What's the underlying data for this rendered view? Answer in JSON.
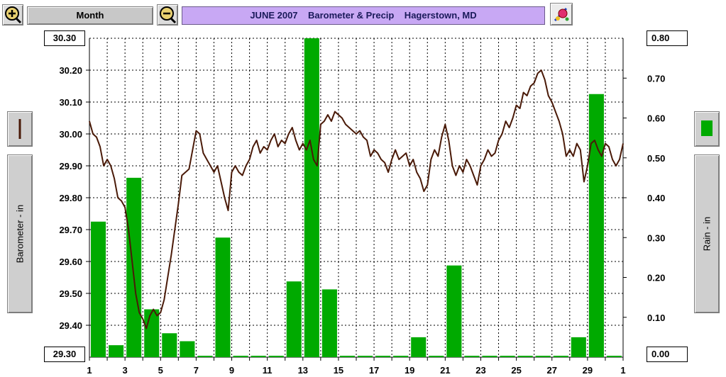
{
  "toolbar": {
    "zoom_in_icon": "magnifier-plus-icon",
    "period_label": "Month",
    "zoom_out_icon": "magnifier-minus-icon",
    "title": "JUNE 2007    Barometer & Precip    Hagerstown, MD",
    "tool_icon": "paint-tool-icon"
  },
  "left_panel": {
    "legend_icon": "barometer-line-swatch",
    "axis_label": "Barometer - in"
  },
  "right_panel": {
    "legend_icon": "rain-bar-swatch",
    "axis_label": "Rain - in"
  },
  "colors": {
    "barometer_line": "#4a1a08",
    "rain_bars": "#00aa00",
    "grid": "#000000",
    "title_bg": "#c8a8f4"
  },
  "chart_data": {
    "type": "bar",
    "title": "JUNE 2007    Barometer & Precip    Hagerstown, MD",
    "x_ticks": [
      "1",
      "3",
      "5",
      "7",
      "9",
      "11",
      "13",
      "15",
      "17",
      "19",
      "21",
      "23",
      "25",
      "27",
      "29",
      "1"
    ],
    "xlim": [
      1,
      31
    ],
    "grid": true,
    "left_axis": {
      "label": "Barometer - in",
      "ylim": [
        29.3,
        30.3
      ],
      "ticks": [
        "30.30",
        "30.20",
        "30.10",
        "30.00",
        "29.90",
        "29.80",
        "29.70",
        "29.60",
        "29.50",
        "29.40",
        "29.30"
      ]
    },
    "right_axis": {
      "label": "Rain - in",
      "ylim": [
        0,
        0.8
      ],
      "ticks": [
        "0.80",
        "0.70",
        "0.60",
        "0.50",
        "0.40",
        "0.30",
        "0.20",
        "0.10",
        "0.00"
      ]
    },
    "rain": {
      "days": [
        1,
        2,
        3,
        4,
        5,
        6,
        7,
        8,
        9,
        10,
        11,
        12,
        13,
        14,
        15,
        16,
        17,
        18,
        19,
        20,
        21,
        22,
        23,
        24,
        25,
        26,
        27,
        28,
        29,
        30
      ],
      "values": [
        0.34,
        0.03,
        0.45,
        0.12,
        0.06,
        0.04,
        0.0,
        0.3,
        0.0,
        0.0,
        0.0,
        0.19,
        0.8,
        0.17,
        0.0,
        0.0,
        0.0,
        0.0,
        0.05,
        0.0,
        0.23,
        0.0,
        0.0,
        0.0,
        0.0,
        0.0,
        0.0,
        0.05,
        0.66,
        0.0
      ]
    },
    "barometer": {
      "t": [
        1.0,
        1.2,
        1.4,
        1.6,
        1.8,
        2.0,
        2.2,
        2.4,
        2.6,
        2.8,
        3.0,
        3.2,
        3.4,
        3.6,
        3.8,
        4.0,
        4.2,
        4.4,
        4.6,
        4.8,
        5.0,
        5.2,
        5.4,
        5.6,
        5.8,
        6.0,
        6.2,
        6.4,
        6.6,
        6.8,
        7.0,
        7.2,
        7.4,
        7.6,
        7.8,
        8.0,
        8.2,
        8.4,
        8.6,
        8.8,
        9.0,
        9.2,
        9.4,
        9.6,
        9.8,
        10.0,
        10.2,
        10.4,
        10.6,
        10.8,
        11.0,
        11.2,
        11.4,
        11.6,
        11.8,
        12.0,
        12.2,
        12.4,
        12.6,
        12.8,
        13.0,
        13.2,
        13.4,
        13.6,
        13.8,
        14.0,
        14.2,
        14.4,
        14.6,
        14.8,
        15.0,
        15.2,
        15.4,
        15.6,
        15.8,
        16.0,
        16.2,
        16.4,
        16.6,
        16.8,
        17.0,
        17.2,
        17.4,
        17.6,
        17.8,
        18.0,
        18.2,
        18.4,
        18.6,
        18.8,
        19.0,
        19.2,
        19.4,
        19.6,
        19.8,
        20.0,
        20.2,
        20.4,
        20.6,
        20.8,
        21.0,
        21.2,
        21.4,
        21.6,
        21.8,
        22.0,
        22.2,
        22.4,
        22.6,
        22.8,
        23.0,
        23.2,
        23.4,
        23.6,
        23.8,
        24.0,
        24.2,
        24.4,
        24.6,
        24.8,
        25.0,
        25.2,
        25.4,
        25.6,
        25.8,
        26.0,
        26.2,
        26.4,
        26.6,
        26.8,
        27.0,
        27.2,
        27.4,
        27.6,
        27.8,
        28.0,
        28.2,
        28.4,
        28.6,
        28.8,
        29.0,
        29.2,
        29.4,
        29.6,
        29.8,
        30.0,
        30.2,
        30.4,
        30.6,
        30.8,
        31.0
      ],
      "values": [
        30.04,
        30.0,
        29.99,
        29.96,
        29.9,
        29.92,
        29.9,
        29.86,
        29.8,
        29.79,
        29.77,
        29.7,
        29.6,
        29.5,
        29.44,
        29.42,
        29.39,
        29.43,
        29.45,
        29.43,
        29.44,
        29.48,
        29.55,
        29.62,
        29.7,
        29.78,
        29.87,
        29.88,
        29.89,
        29.95,
        30.01,
        30.0,
        29.94,
        29.92,
        29.9,
        29.88,
        29.9,
        29.85,
        29.8,
        29.76,
        29.88,
        29.9,
        29.88,
        29.87,
        29.9,
        29.92,
        29.96,
        29.98,
        29.94,
        29.96,
        29.95,
        29.98,
        30.0,
        29.96,
        29.98,
        29.97,
        30.0,
        30.02,
        29.98,
        29.95,
        29.97,
        29.95,
        29.98,
        29.92,
        29.9,
        30.03,
        30.04,
        30.06,
        30.04,
        30.07,
        30.06,
        30.05,
        30.03,
        30.02,
        30.01,
        30.0,
        30.01,
        29.99,
        29.98,
        29.93,
        29.95,
        29.94,
        29.92,
        29.91,
        29.88,
        29.92,
        29.95,
        29.92,
        29.93,
        29.94,
        29.9,
        29.92,
        29.88,
        29.86,
        29.82,
        29.84,
        29.92,
        29.95,
        29.93,
        29.99,
        30.03,
        29.98,
        29.9,
        29.87,
        29.9,
        29.88,
        29.92,
        29.9,
        29.87,
        29.84,
        29.9,
        29.92,
        29.95,
        29.93,
        29.94,
        29.98,
        30.0,
        30.04,
        30.02,
        30.05,
        30.09,
        30.08,
        30.13,
        30.12,
        30.15,
        30.16,
        30.19,
        30.2,
        30.17,
        30.12,
        30.1,
        30.07,
        30.04,
        30.0,
        29.93,
        29.95,
        29.93,
        29.97,
        29.95,
        29.85,
        29.9,
        29.97,
        29.98,
        29.95,
        29.93,
        29.97,
        29.96,
        29.92,
        29.9,
        29.92,
        29.97
      ]
    }
  }
}
